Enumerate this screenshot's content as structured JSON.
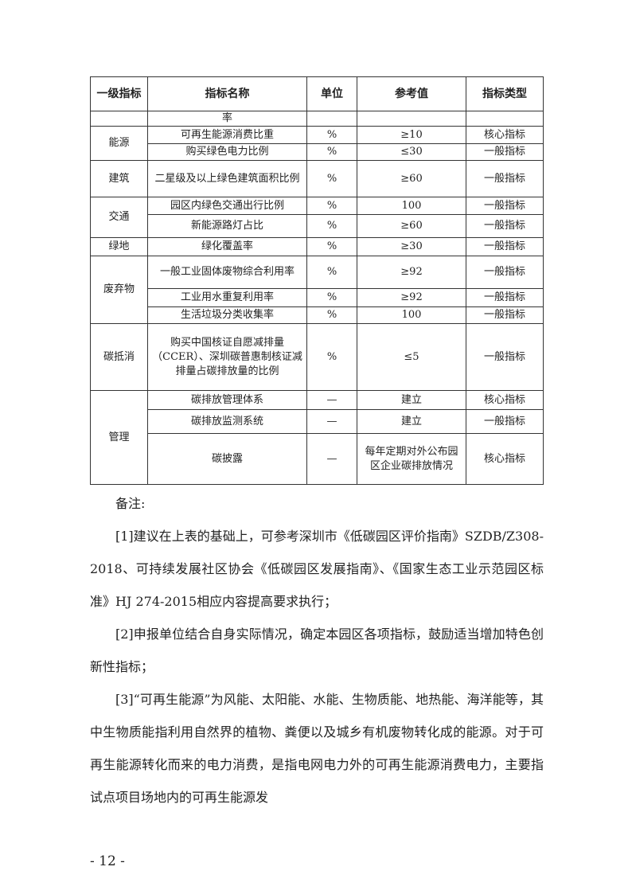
{
  "table": {
    "headers": [
      "一级指标",
      "指标名称",
      "单位",
      "参考值",
      "指标类型"
    ],
    "continuation_row": {
      "name": "率"
    },
    "groups": [
      {
        "category": "能源",
        "rows": [
          {
            "name": "可再生能源消费比重",
            "unit": "%",
            "ref": "≥10",
            "type": "核心指标"
          },
          {
            "name": "购买绿色电力比例",
            "unit": "%",
            "ref": "≤30",
            "type": "一般指标"
          }
        ]
      },
      {
        "category": "建筑",
        "rows": [
          {
            "name": "二星级及以上绿色建筑面积比例",
            "unit": "%",
            "ref": "≥60",
            "type": "一般指标"
          }
        ]
      },
      {
        "category": "交通",
        "rows": [
          {
            "name": "园区内绿色交通出行比例",
            "unit": "%",
            "ref": "100",
            "type": "一般指标"
          },
          {
            "name": "新能源路灯占比",
            "unit": "%",
            "ref": "≥60",
            "type": "一般指标"
          }
        ]
      },
      {
        "category": "绿地",
        "rows": [
          {
            "name": "绿化覆盖率",
            "unit": "%",
            "ref": "≥30",
            "type": "一般指标"
          }
        ]
      },
      {
        "category": "废弃物",
        "rows": [
          {
            "name": "一般工业固体废物综合利用率",
            "unit": "%",
            "ref": "≥92",
            "type": "一般指标"
          },
          {
            "name": "工业用水重复利用率",
            "unit": "%",
            "ref": "≥92",
            "type": "一般指标"
          },
          {
            "name": "生活垃圾分类收集率",
            "unit": "%",
            "ref": "100",
            "type": "一般指标"
          }
        ]
      },
      {
        "category": "碳抵消",
        "rows": [
          {
            "name": "购买中国核证自愿减排量（CCER）、深圳碳普惠制核证减排量占碳排放量的比例",
            "unit": "%",
            "ref": "≤5",
            "type": "一般指标"
          }
        ]
      },
      {
        "category": "管理",
        "rows": [
          {
            "name": "碳排放管理体系",
            "unit": "—",
            "ref": "建立",
            "type": "核心指标"
          },
          {
            "name": "碳排放监测系统",
            "unit": "—",
            "ref": "建立",
            "type": "一般指标"
          },
          {
            "name": "碳披露",
            "unit": "—",
            "ref": "每年定期对外公布园区企业碳排放情况",
            "type": "核心指标"
          }
        ]
      }
    ]
  },
  "notes": {
    "title": "备注:",
    "items": [
      "[1]建议在上表的基础上，可参考深圳市《低碳园区评价指南》SZDB/Z308-2018、可持续发展社区协会《低碳园区发展指南》、《国家生态工业示范园区标准》HJ 274-2015相应内容提高要求执行；",
      "[2]申报单位结合自身实际情况，确定本园区各项指标，鼓励适当增加特色创新性指标；",
      "[3]“可再生能源”为风能、太阳能、水能、生物质能、地热能、海洋能等，其中生物质能指利用自然界的植物、粪便以及城乡有机废物转化成的能源。对于可再生能源转化而来的电力消费，是指电网电力外的可再生能源消费电力，主要指试点项目场地内的可再生能源发"
    ]
  },
  "page_number": "- 12 -"
}
